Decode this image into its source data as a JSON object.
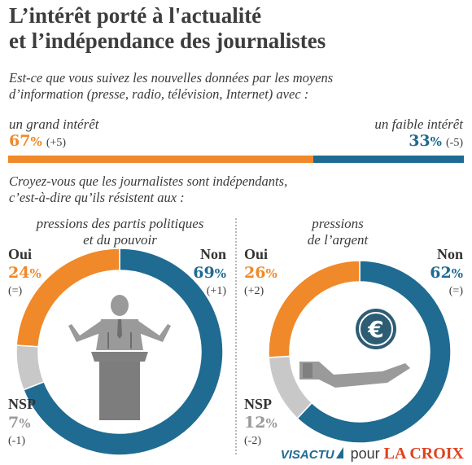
{
  "header": {
    "title_line1": "L’intérêt porté à l'actualité",
    "title_line2": "et l’indépendance des journalistes"
  },
  "q1": {
    "text_line1": "Est-ce que vous suivez les nouvelles données par les moyens",
    "text_line2": "d’information (presse, radio, télévision, Internet) avec :",
    "left_label": "un grand intérêt",
    "left_value": "67",
    "left_delta": "(+5)",
    "right_label": "un faible intérêt",
    "right_value": "33",
    "right_delta": "(-5)",
    "pct_unit": "%"
  },
  "q2": {
    "text_line1": "Croyez-vous que les journalistes sont indépendants,",
    "text_line2": "c’est-à-dire qu’ils résistent aux :"
  },
  "panel_left": {
    "title_line1": "pressions des partis politiques",
    "title_line2": "et du pouvoir",
    "oui_label": "Oui",
    "oui_value": "24",
    "oui_delta": "(=)",
    "non_label": "Non",
    "non_value": "69",
    "non_delta": "(+1)",
    "nsp_label": "NSP",
    "nsp_value": "7",
    "nsp_delta": "(-1)",
    "icon": "politician-at-podium-icon"
  },
  "panel_right": {
    "title_line1": "pressions",
    "title_line2": "de l’argent",
    "oui_label": "Oui",
    "oui_value": "26",
    "oui_delta": "(+2)",
    "non_label": "Non",
    "non_value": "62",
    "non_delta": "(=)",
    "nsp_label": "NSP",
    "nsp_value": "12",
    "nsp_delta": "(-2)",
    "icon": "hand-with-euro-coin-icon"
  },
  "footer": {
    "brand1": "VISACTU",
    "brand_mid": "pour",
    "brand2": "LA CROIX"
  },
  "colors": {
    "orange": "#f0892a",
    "blue": "#1f6b91",
    "grey": "#c8c8c8"
  },
  "chart_data": [
    {
      "type": "bar",
      "categories": [
        "un grand intérêt",
        "un faible intérêt"
      ],
      "values": [
        67,
        33
      ],
      "deltas": [
        "+5",
        "-5"
      ]
    },
    {
      "type": "pie",
      "title": "pressions des partis politiques et du pouvoir",
      "categories": [
        "Oui",
        "Non",
        "NSP"
      ],
      "values": [
        24,
        69,
        7
      ],
      "deltas": [
        "=",
        "+1",
        "-1"
      ]
    },
    {
      "type": "pie",
      "title": "pressions de l’argent",
      "categories": [
        "Oui",
        "Non",
        "NSP"
      ],
      "values": [
        26,
        62,
        12
      ],
      "deltas": [
        "+2",
        "=",
        "-2"
      ]
    }
  ]
}
